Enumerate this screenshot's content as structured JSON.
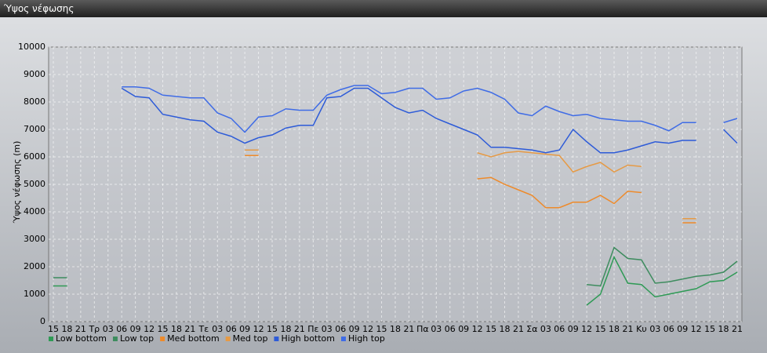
{
  "chart_data": {
    "type": "line",
    "title": "Ύψος νέφωσης",
    "y_label": "Ύψος νέφωσης (m)",
    "categories": [
      "15",
      "18",
      "21",
      "Τρ",
      "03",
      "06",
      "09",
      "12",
      "15",
      "18",
      "21",
      "Τε",
      "03",
      "06",
      "09",
      "12",
      "15",
      "18",
      "21",
      "Πε",
      "03",
      "06",
      "09",
      "12",
      "15",
      "18",
      "21",
      "Πα",
      "03",
      "06",
      "09",
      "12",
      "15",
      "18",
      "21",
      "Σα",
      "03",
      "06",
      "09",
      "12",
      "15",
      "18",
      "21",
      "Κυ",
      "03",
      "06",
      "09",
      "12",
      "15",
      "18",
      "21"
    ],
    "ylim": [
      0,
      10000
    ],
    "yticks": [
      0,
      1000,
      2000,
      3000,
      4000,
      5000,
      6000,
      7000,
      8000,
      9000,
      10000
    ],
    "grid": true,
    "series": [
      {
        "name": "Low bottom",
        "color": "#2e9a55",
        "values": [
          1300,
          1300,
          null,
          null,
          null,
          null,
          null,
          null,
          null,
          null,
          null,
          null,
          null,
          null,
          null,
          null,
          null,
          null,
          null,
          null,
          null,
          null,
          null,
          null,
          null,
          null,
          null,
          null,
          null,
          null,
          null,
          null,
          null,
          null,
          null,
          null,
          null,
          null,
          null,
          600,
          1000,
          2350,
          1400,
          1350,
          900,
          1000,
          1100,
          1200,
          1450,
          1500,
          1800
        ]
      },
      {
        "name": "Low top",
        "color": "#3d8c5e",
        "values": [
          1600,
          1600,
          null,
          null,
          null,
          null,
          null,
          null,
          null,
          null,
          null,
          null,
          null,
          null,
          null,
          null,
          null,
          null,
          null,
          null,
          null,
          null,
          null,
          null,
          null,
          null,
          null,
          null,
          null,
          null,
          null,
          null,
          null,
          null,
          null,
          null,
          null,
          null,
          null,
          1350,
          1300,
          2700,
          2300,
          2250,
          1400,
          1450,
          1550,
          1650,
          1700,
          1800,
          2200
        ]
      },
      {
        "name": "Med bottom",
        "color": "#ee8a2a",
        "values": [
          null,
          null,
          null,
          null,
          null,
          null,
          null,
          null,
          null,
          null,
          null,
          null,
          null,
          null,
          6050,
          6050,
          null,
          null,
          null,
          null,
          null,
          null,
          null,
          null,
          null,
          null,
          null,
          null,
          null,
          null,
          null,
          5200,
          5250,
          5000,
          4800,
          4600,
          4150,
          4150,
          4350,
          4350,
          4600,
          4300,
          4750,
          4700,
          null,
          null,
          3600,
          3600,
          null,
          null,
          null
        ]
      },
      {
        "name": "Med top",
        "color": "#e69a45",
        "values": [
          null,
          null,
          null,
          null,
          null,
          null,
          null,
          null,
          null,
          null,
          null,
          null,
          null,
          null,
          6250,
          6250,
          null,
          null,
          null,
          null,
          null,
          null,
          null,
          null,
          null,
          null,
          null,
          null,
          null,
          null,
          null,
          6150,
          6000,
          6150,
          6200,
          6150,
          6100,
          6050,
          5450,
          5650,
          5800,
          5450,
          5700,
          5650,
          null,
          null,
          3750,
          3750,
          null,
          null,
          null
        ]
      },
      {
        "name": "High bottom",
        "color": "#2d5bd8",
        "values": [
          null,
          null,
          null,
          null,
          null,
          8500,
          8200,
          8150,
          7550,
          7450,
          7350,
          7300,
          6900,
          6750,
          6500,
          6700,
          6800,
          7050,
          7150,
          7150,
          8150,
          8200,
          8500,
          8500,
          8150,
          7800,
          7600,
          7700,
          7400,
          7200,
          7000,
          6800,
          6350,
          6350,
          6300,
          6250,
          6150,
          6250,
          7000,
          6550,
          6150,
          6150,
          6250,
          6400,
          6550,
          6500,
          6600,
          6600,
          null,
          7000,
          6500
        ]
      },
      {
        "name": "High top",
        "color": "#3f6ce6",
        "values": [
          null,
          null,
          null,
          null,
          null,
          8550,
          8550,
          8500,
          8250,
          8200,
          8150,
          8150,
          7600,
          7400,
          6900,
          7450,
          7500,
          7750,
          7700,
          7700,
          8250,
          8450,
          8600,
          8600,
          8300,
          8350,
          8500,
          8500,
          8100,
          8150,
          8400,
          8500,
          8350,
          8100,
          7600,
          7500,
          7850,
          7650,
          7500,
          7550,
          7400,
          7350,
          7300,
          7300,
          7150,
          6950,
          7250,
          7250,
          null,
          7250,
          7400
        ]
      }
    ]
  }
}
